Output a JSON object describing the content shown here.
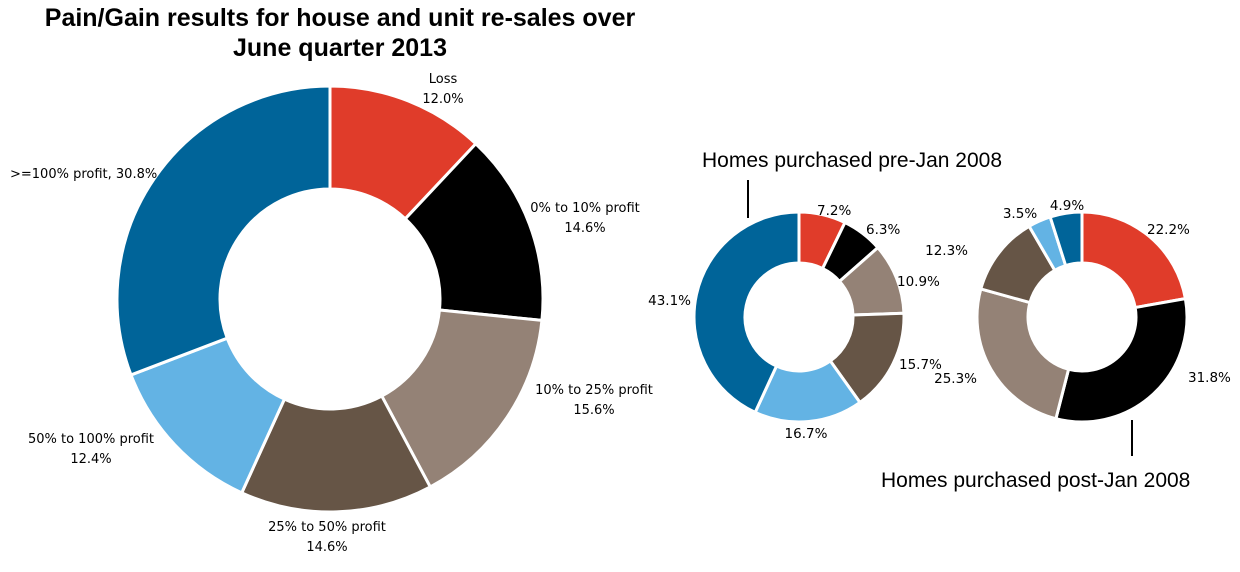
{
  "chart_data": [
    {
      "type": "pie",
      "title": [
        "Pain/Gain results for house and unit re-sales over",
        "June quarter 2013"
      ],
      "categories": [
        "Loss",
        "0% to 10% profit",
        "10% to 25% profit",
        "25% to 50% profit",
        "50% to 100% profit",
        ">=100% profit"
      ],
      "values": [
        12.0,
        14.6,
        15.6,
        14.6,
        12.4,
        30.8
      ],
      "labels": [
        [
          "Loss",
          "12.0%"
        ],
        [
          "0% to 10% profit",
          "14.6%"
        ],
        [
          "10% to 25% profit",
          "15.6%"
        ],
        [
          "25% to 50% profit",
          "14.6%"
        ],
        [
          "50% to 100% profit",
          "12.4%"
        ],
        [
          ">=100% profit, 30.8%"
        ]
      ]
    },
    {
      "type": "pie",
      "title": "Homes purchased pre-Jan 2008",
      "categories": [
        "Loss",
        "0% to 10% profit",
        "10% to 25% profit",
        "25% to 50% profit",
        "50% to 100% profit",
        ">=100% profit"
      ],
      "values": [
        7.2,
        6.3,
        10.9,
        15.7,
        16.7,
        43.1
      ],
      "labels": [
        "7.2%",
        "6.3%",
        "10.9%",
        "15.7%",
        "16.7%",
        "43.1%"
      ]
    },
    {
      "type": "pie",
      "title": "Homes purchased post-Jan 2008",
      "categories": [
        "Loss",
        "0% to 10% profit",
        "10% to 25% profit",
        "25% to 50% profit",
        "50% to 100% profit",
        ">=100% profit"
      ],
      "values": [
        22.2,
        31.8,
        25.3,
        12.3,
        3.5,
        4.9
      ],
      "labels": [
        "22.2%",
        "31.8%",
        "25.3%",
        "12.3%",
        "3.5%",
        "4.9%"
      ]
    }
  ],
  "colors": [
    "#e03c2a",
    "#000000",
    "#948276",
    "#665546",
    "#63b3e4",
    "#006499"
  ]
}
